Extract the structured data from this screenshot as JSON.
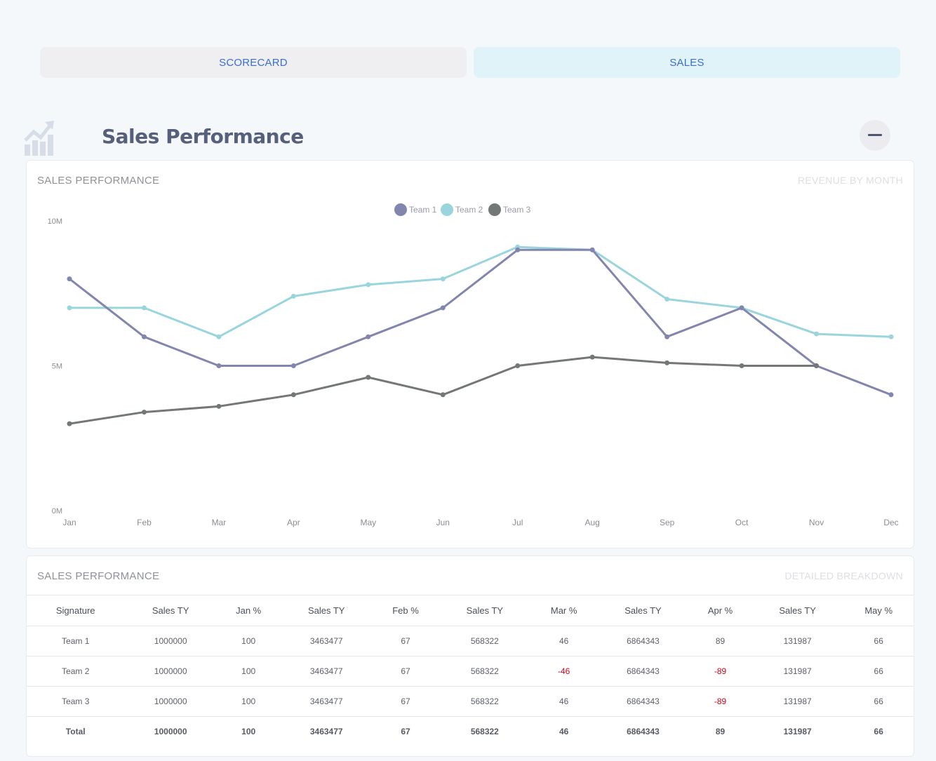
{
  "tabs": [
    {
      "label": "SCORECARD"
    },
    {
      "label": "SALES"
    }
  ],
  "section": {
    "title": "Sales Performance",
    "icon": "chart-growth-icon",
    "collapse_icon": "minus-icon"
  },
  "chart_card": {
    "title": "SALES PERFORMANCE",
    "subtitle": "REVENUE BY MONTH"
  },
  "chart_data": {
    "type": "line",
    "categories": [
      "Jan",
      "Feb",
      "Mar",
      "Apr",
      "May",
      "Jun",
      "Jul",
      "Aug",
      "Sep",
      "Oct",
      "Nov",
      "Dec"
    ],
    "y_ticks": [
      "0M",
      "5M",
      "10M"
    ],
    "ylim": [
      0,
      10
    ],
    "legend_position": "top-center",
    "series": [
      {
        "name": "Team 1",
        "color": "#8286ad",
        "values": [
          8.0,
          6.0,
          5.0,
          5.0,
          6.0,
          7.0,
          9.0,
          9.0,
          6.0,
          7.0,
          5.0,
          4.0
        ]
      },
      {
        "name": "Team 2",
        "color": "#9ad5de",
        "values": [
          7.0,
          7.0,
          6.0,
          7.4,
          7.8,
          8.0,
          9.1,
          9.0,
          7.3,
          7.0,
          6.1,
          6.0
        ]
      },
      {
        "name": "Team 3",
        "color": "#737876",
        "values": [
          3.0,
          3.4,
          3.6,
          4.0,
          4.6,
          4.0,
          5.0,
          5.3,
          5.1,
          5.0,
          5.0,
          null
        ]
      }
    ]
  },
  "table_card": {
    "title": "SALES PERFORMANCE",
    "subtitle": "DETAILED BREAKDOWN"
  },
  "table": {
    "headers": [
      "Signature",
      "Sales TY",
      "Jan %",
      "Sales TY",
      "Feb %",
      "Sales TY",
      "Mar %",
      "Sales TY",
      "Apr %",
      "Sales TY",
      "May %"
    ],
    "rows": [
      [
        "Team 1",
        "1000000",
        "100",
        "3463477",
        "67",
        "568322",
        "46",
        "6864343",
        "89",
        "131987",
        "66"
      ],
      [
        "Team 2",
        "1000000",
        "100",
        "3463477",
        "67",
        "568322",
        "-46",
        "6864343",
        "-89",
        "131987",
        "66"
      ],
      [
        "Team 3",
        "1000000",
        "100",
        "3463477",
        "67",
        "568322",
        "46",
        "6864343",
        "-89",
        "131987",
        "66"
      ]
    ],
    "total": [
      "Total",
      "1000000",
      "100",
      "3463477",
      "67",
      "568322",
      "46",
      "6864343",
      "89",
      "131987",
      "66"
    ],
    "negative_color": "#d0021b"
  }
}
